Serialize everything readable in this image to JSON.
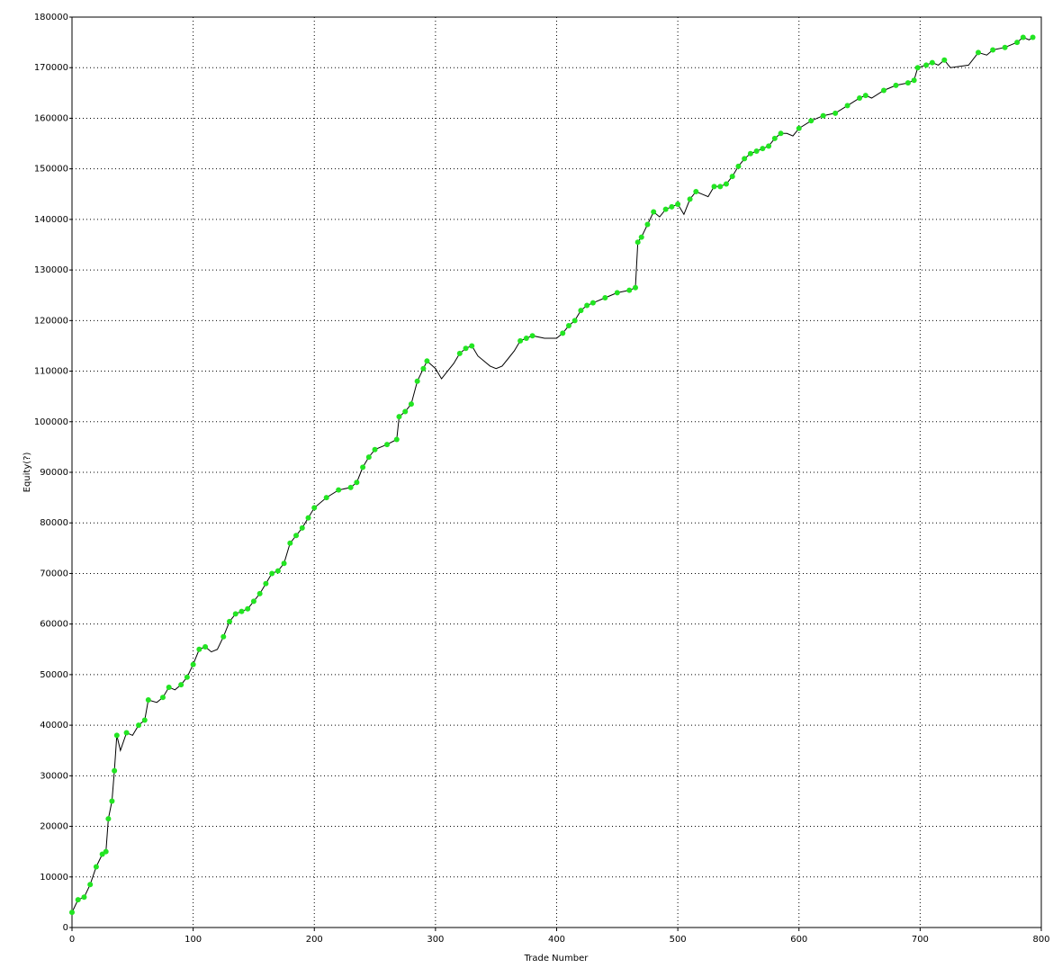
{
  "chart_data": {
    "type": "line",
    "x_label": "Trade Number",
    "y_label": "Equity(?)",
    "xlim": [
      0,
      800
    ],
    "xticks": [
      0,
      100,
      200,
      300,
      400,
      500,
      600,
      700,
      800
    ],
    "ylim": [
      0,
      180000
    ],
    "yticks": [
      0,
      10000,
      20000,
      30000,
      40000,
      50000,
      60000,
      70000,
      80000,
      90000,
      100000,
      110000,
      120000,
      130000,
      140000,
      150000,
      160000,
      170000,
      180000
    ],
    "grid": true,
    "series": [
      {
        "color": "#000000",
        "x": [
          0,
          5,
          10,
          15,
          20,
          25,
          28,
          30,
          33,
          35,
          37,
          40,
          45,
          50,
          55,
          60,
          63,
          70,
          75,
          80,
          85,
          90,
          95,
          100,
          105,
          110,
          115,
          120,
          125,
          130,
          135,
          140,
          145,
          150,
          155,
          160,
          165,
          170,
          175,
          180,
          185,
          190,
          195,
          200,
          210,
          220,
          230,
          235,
          240,
          245,
          250,
          260,
          268,
          270,
          275,
          280,
          285,
          290,
          293,
          300,
          305,
          310,
          315,
          320,
          325,
          330,
          335,
          340,
          345,
          350,
          355,
          360,
          365,
          370,
          375,
          380,
          390,
          400,
          405,
          410,
          415,
          420,
          425,
          430,
          440,
          450,
          460,
          465,
          467,
          470,
          475,
          480,
          485,
          490,
          495,
          500,
          505,
          510,
          515,
          520,
          525,
          530,
          535,
          540,
          545,
          550,
          555,
          560,
          565,
          570,
          575,
          580,
          585,
          590,
          595,
          600,
          610,
          620,
          630,
          640,
          650,
          655,
          660,
          670,
          680,
          690,
          695,
          698,
          705,
          710,
          715,
          720,
          725,
          740,
          748,
          755,
          760,
          770,
          780,
          785,
          790,
          793
        ],
        "values": [
          3000,
          5500,
          6000,
          8500,
          12000,
          14500,
          15000,
          21500,
          25000,
          31000,
          38000,
          35000,
          38500,
          38000,
          40000,
          41000,
          45000,
          44500,
          45500,
          47500,
          47000,
          48000,
          49500,
          52000,
          55000,
          55500,
          54500,
          55000,
          57500,
          60500,
          62000,
          62500,
          63000,
          64500,
          66000,
          68000,
          70000,
          70500,
          72000,
          76000,
          77500,
          79000,
          81000,
          83000,
          85000,
          86500,
          87000,
          88000,
          91000,
          93000,
          94500,
          95500,
          96500,
          101000,
          102000,
          103500,
          108000,
          110500,
          112000,
          110500,
          108500,
          110000,
          111500,
          113500,
          114500,
          115000,
          113000,
          112000,
          111000,
          110500,
          111000,
          112500,
          114000,
          116000,
          116500,
          117000,
          116500,
          116500,
          117500,
          119000,
          120000,
          122000,
          123000,
          123500,
          124500,
          125500,
          126000,
          126500,
          135500,
          136500,
          139000,
          141500,
          140500,
          142000,
          142500,
          143000,
          141000,
          144000,
          145500,
          145000,
          144500,
          146500,
          146500,
          147000,
          148500,
          150500,
          152000,
          153000,
          153500,
          154000,
          154500,
          156000,
          157000,
          157000,
          156500,
          158000,
          159500,
          160500,
          161000,
          162500,
          164000,
          164500,
          164000,
          165500,
          166500,
          167000,
          167500,
          170000,
          170500,
          171000,
          170500,
          171500,
          170000,
          170500,
          173000,
          172500,
          173500,
          174000,
          175000,
          176000,
          175500,
          176000
        ]
      },
      {
        "color": "#22e522",
        "x": [
          0,
          5,
          10,
          15,
          20,
          25,
          28,
          30,
          33,
          35,
          37,
          45,
          55,
          60,
          63,
          75,
          80,
          90,
          95,
          100,
          105,
          110,
          125,
          130,
          135,
          140,
          145,
          150,
          155,
          160,
          165,
          170,
          175,
          180,
          185,
          190,
          195,
          200,
          210,
          220,
          230,
          235,
          240,
          245,
          250,
          260,
          268,
          270,
          275,
          280,
          285,
          290,
          293,
          320,
          325,
          330,
          370,
          375,
          380,
          405,
          410,
          415,
          420,
          425,
          430,
          440,
          450,
          460,
          465,
          467,
          470,
          475,
          480,
          490,
          495,
          500,
          510,
          515,
          530,
          535,
          540,
          545,
          550,
          555,
          560,
          565,
          570,
          575,
          580,
          585,
          600,
          610,
          620,
          630,
          640,
          650,
          655,
          670,
          680,
          690,
          695,
          698,
          705,
          710,
          720,
          748,
          760,
          770,
          780,
          785,
          793
        ],
        "values": [
          3000,
          5500,
          6000,
          8500,
          12000,
          14500,
          15000,
          21500,
          25000,
          31000,
          38000,
          38500,
          40000,
          41000,
          45000,
          45500,
          47500,
          48000,
          49500,
          52000,
          55000,
          55500,
          57500,
          60500,
          62000,
          62500,
          63000,
          64500,
          66000,
          68000,
          70000,
          70500,
          72000,
          76000,
          77500,
          79000,
          81000,
          83000,
          85000,
          86500,
          87000,
          88000,
          91000,
          93000,
          94500,
          95500,
          96500,
          101000,
          102000,
          103500,
          108000,
          110500,
          112000,
          113500,
          114500,
          115000,
          116000,
          116500,
          117000,
          117500,
          119000,
          120000,
          122000,
          123000,
          123500,
          124500,
          125500,
          126000,
          126500,
          135500,
          136500,
          139000,
          141500,
          142000,
          142500,
          143000,
          144000,
          145500,
          146500,
          146500,
          147000,
          148500,
          150500,
          152000,
          153000,
          153500,
          154000,
          154500,
          156000,
          157000,
          158000,
          159500,
          160500,
          161000,
          162500,
          164000,
          164500,
          165500,
          166500,
          167000,
          167500,
          170000,
          170500,
          171000,
          171500,
          173000,
          173500,
          174000,
          175000,
          176000,
          176000
        ]
      }
    ]
  }
}
